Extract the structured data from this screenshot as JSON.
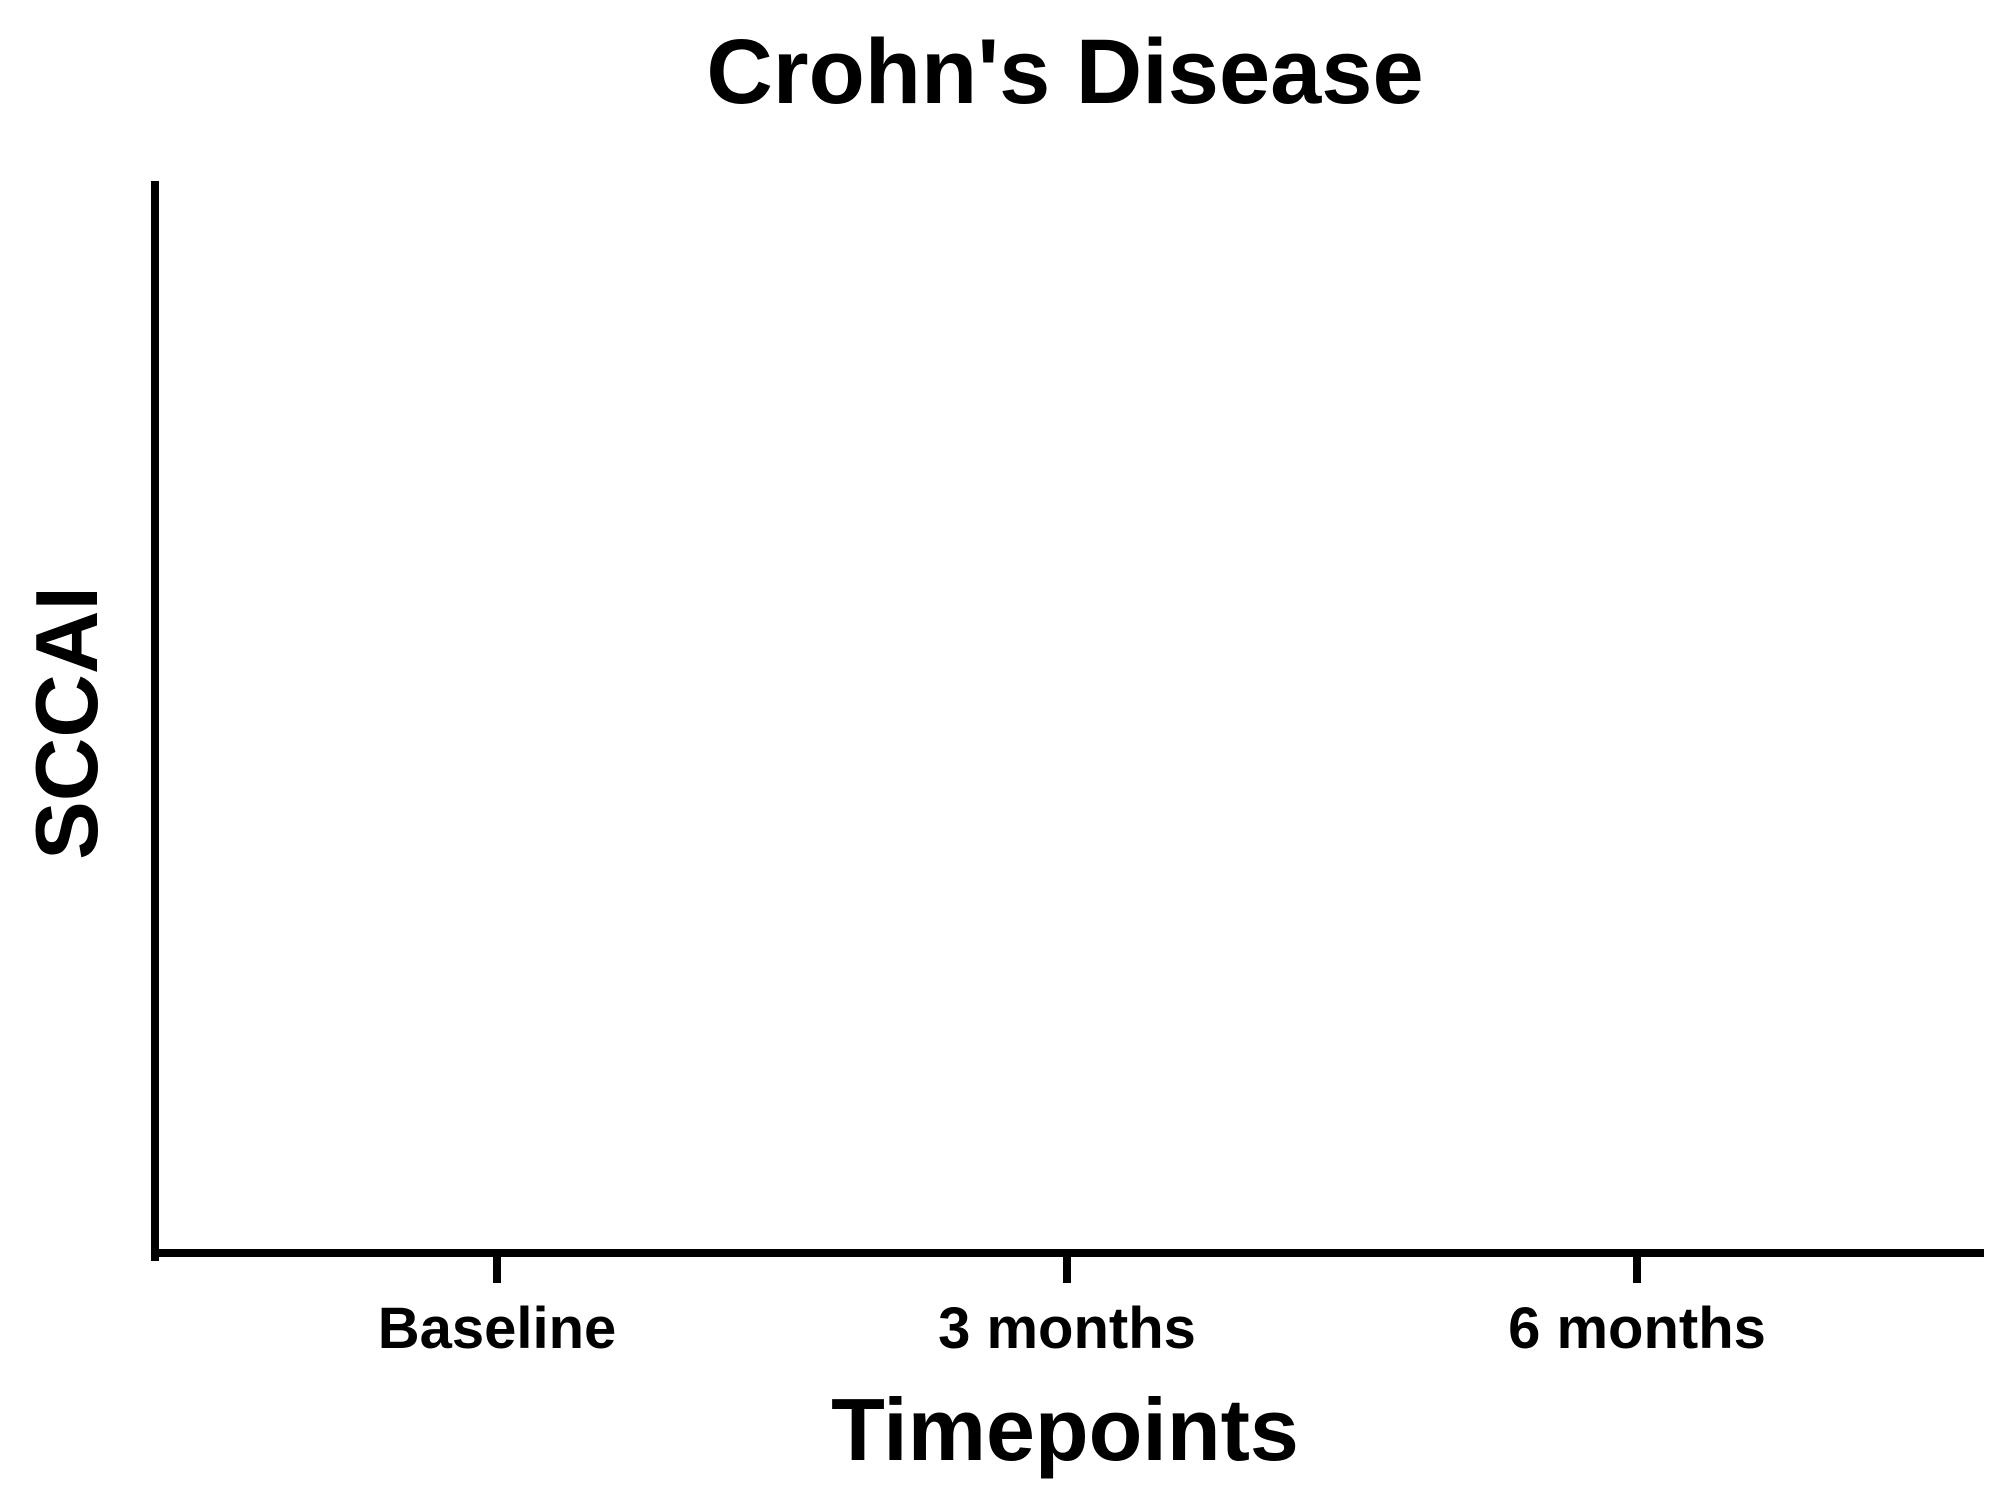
{
  "chart_data": {
    "type": "bar",
    "title": "Crohn's Disease",
    "xlabel": "Timepoints",
    "ylabel": "SCCAI",
    "categories": [
      "Baseline",
      "3 months",
      "6 months"
    ],
    "series": [],
    "grid": false,
    "legend": "none",
    "colors": {
      "axis": "#000000",
      "background": "#ffffff"
    }
  }
}
